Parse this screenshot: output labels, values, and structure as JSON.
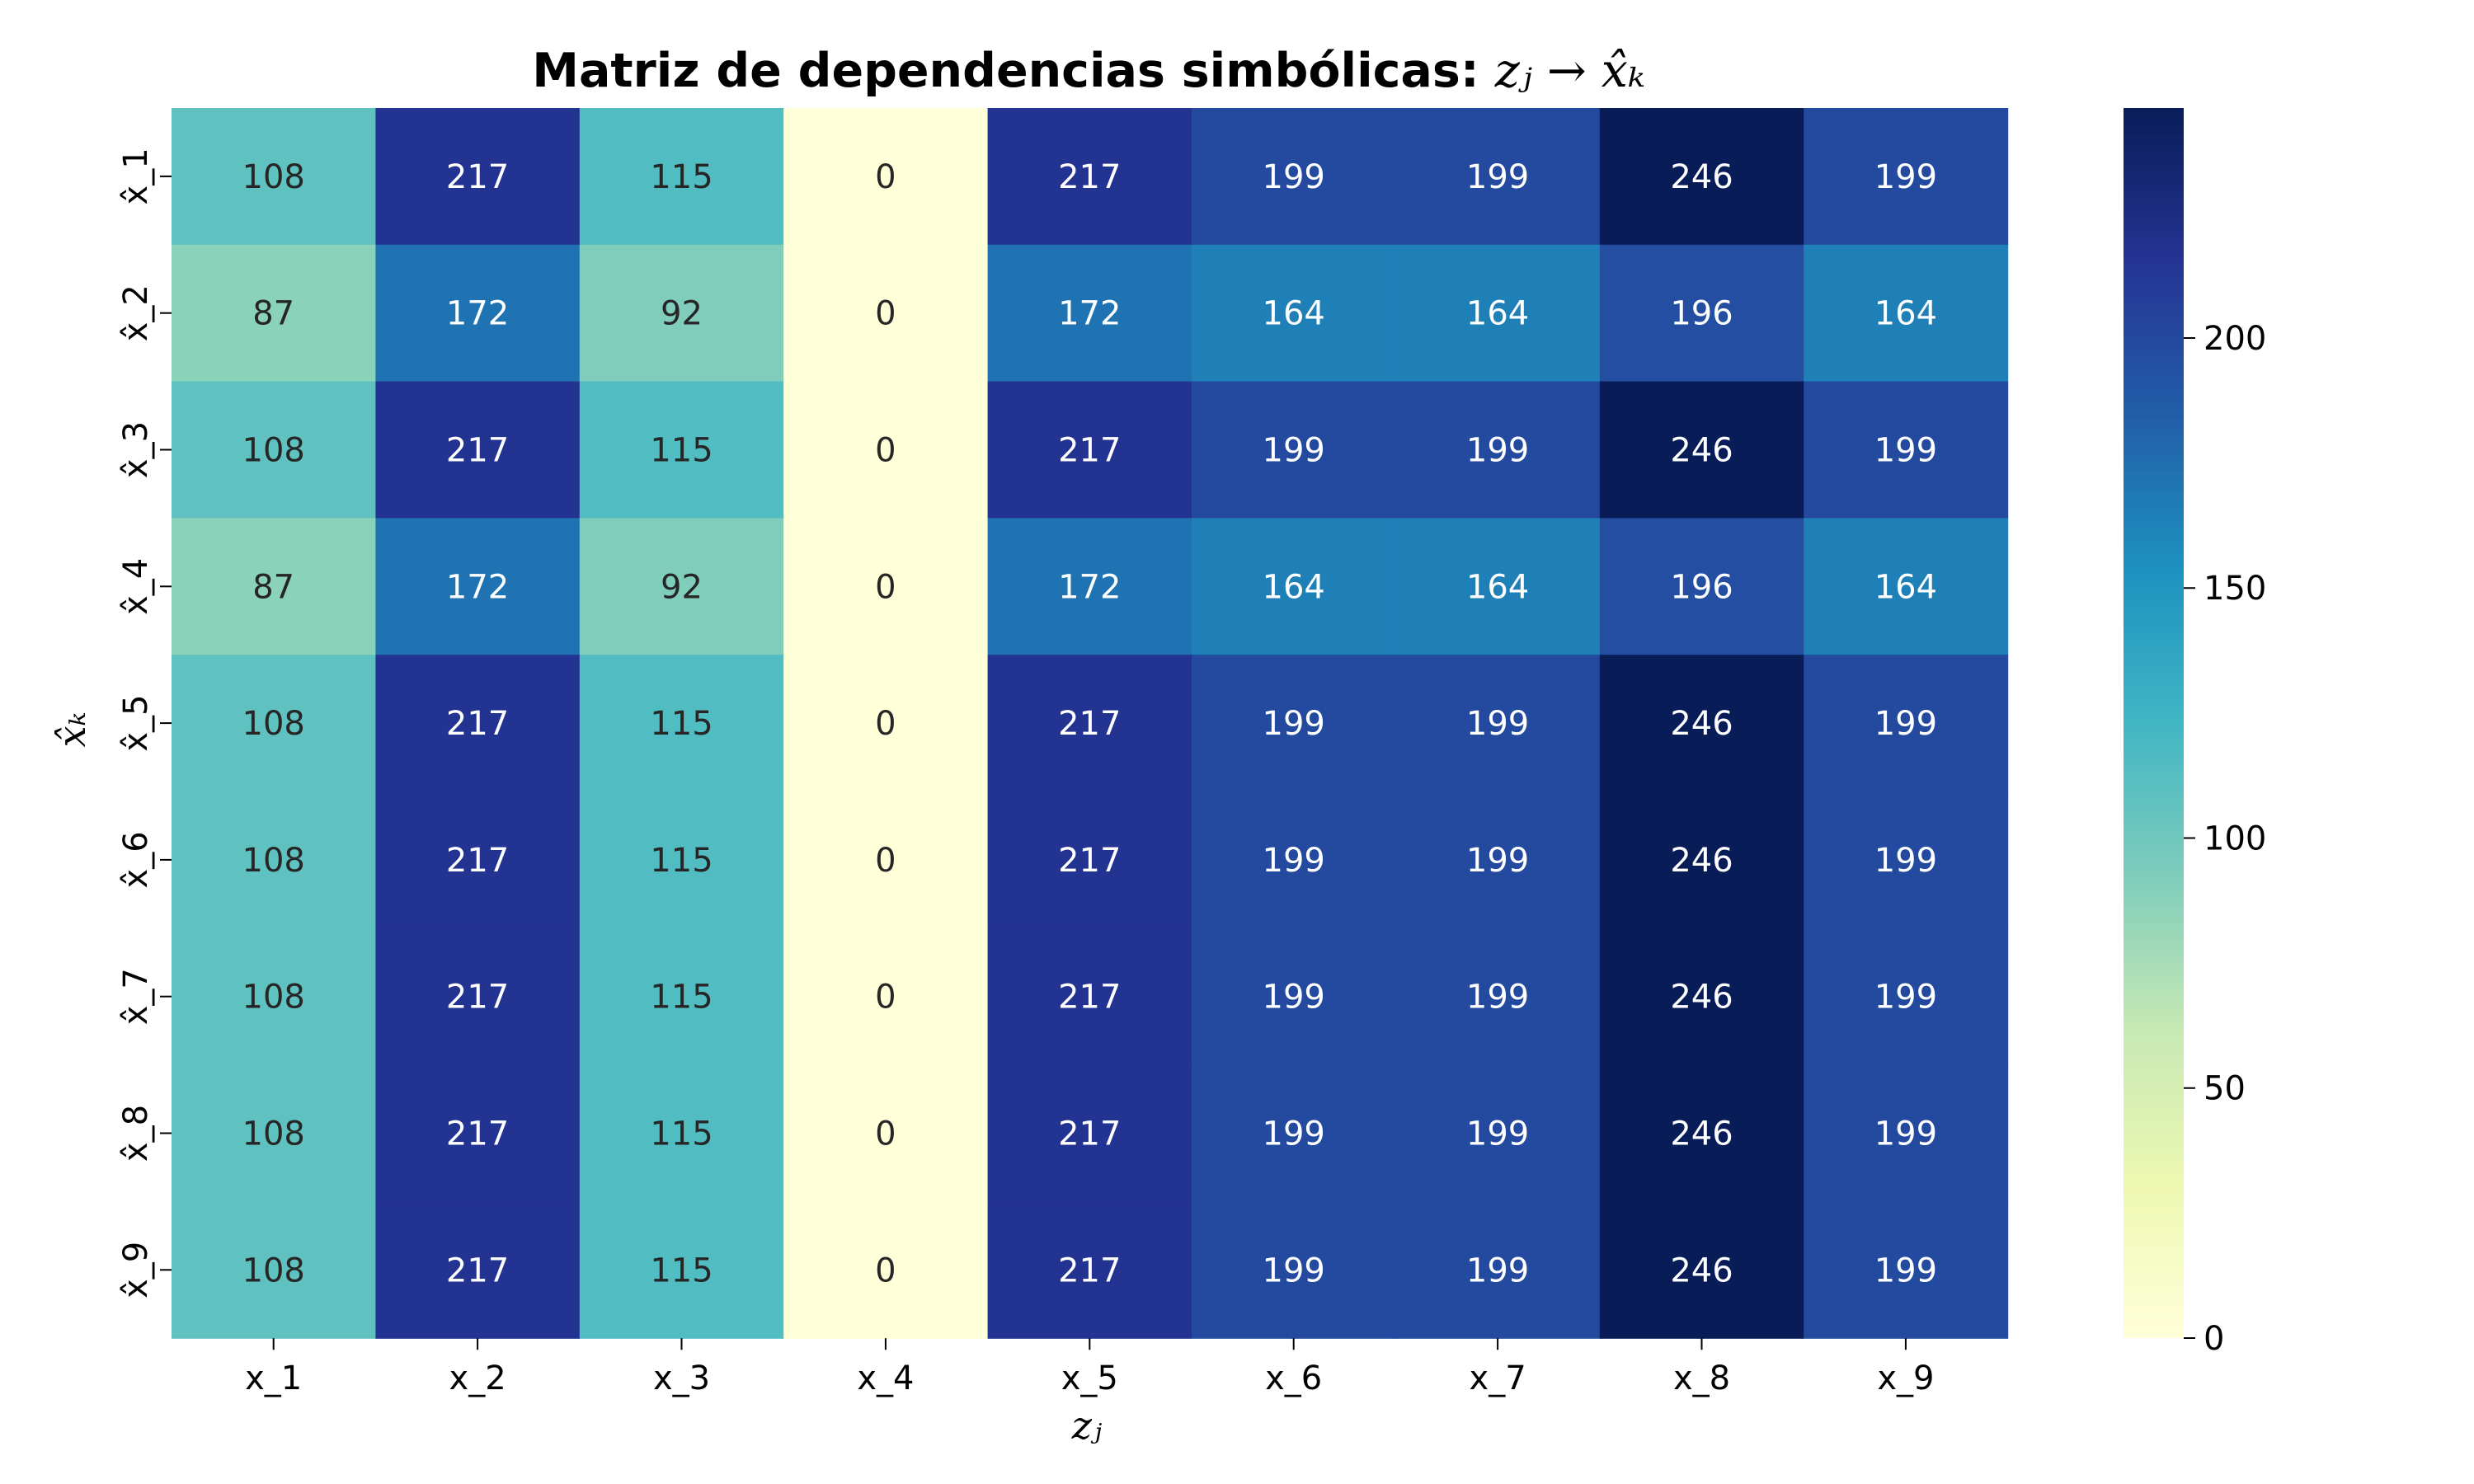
{
  "chart_data": {
    "type": "heatmap",
    "title": "Matriz de dependencias simbólicas:",
    "title_math": "zⱼ → x̂ₖ",
    "xlabel": "zⱼ",
    "ylabel": "x̂ₖ",
    "x_categories": [
      "x_1",
      "x_2",
      "x_3",
      "x_4",
      "x_5",
      "x_6",
      "x_7",
      "x_8",
      "x_9"
    ],
    "y_categories": [
      "x̂_1",
      "x̂_2",
      "x̂_3",
      "x̂_4",
      "x̂_5",
      "x̂_6",
      "x̂_7",
      "x̂_8",
      "x̂_9"
    ],
    "values": [
      [
        108,
        217,
        115,
        0,
        217,
        199,
        199,
        246,
        199
      ],
      [
        87,
        172,
        92,
        0,
        172,
        164,
        164,
        196,
        164
      ],
      [
        108,
        217,
        115,
        0,
        217,
        199,
        199,
        246,
        199
      ],
      [
        87,
        172,
        92,
        0,
        172,
        164,
        164,
        196,
        164
      ],
      [
        108,
        217,
        115,
        0,
        217,
        199,
        199,
        246,
        199
      ],
      [
        108,
        217,
        115,
        0,
        217,
        199,
        199,
        246,
        199
      ],
      [
        108,
        217,
        115,
        0,
        217,
        199,
        199,
        246,
        199
      ],
      [
        108,
        217,
        115,
        0,
        217,
        199,
        199,
        246,
        199
      ],
      [
        108,
        217,
        115,
        0,
        217,
        199,
        199,
        246,
        199
      ]
    ],
    "colormap": "YlGnBu",
    "value_range": [
      0,
      246
    ],
    "colorbar_ticks": [
      0,
      50,
      100,
      150,
      200
    ],
    "annotations": true,
    "grid": false
  }
}
